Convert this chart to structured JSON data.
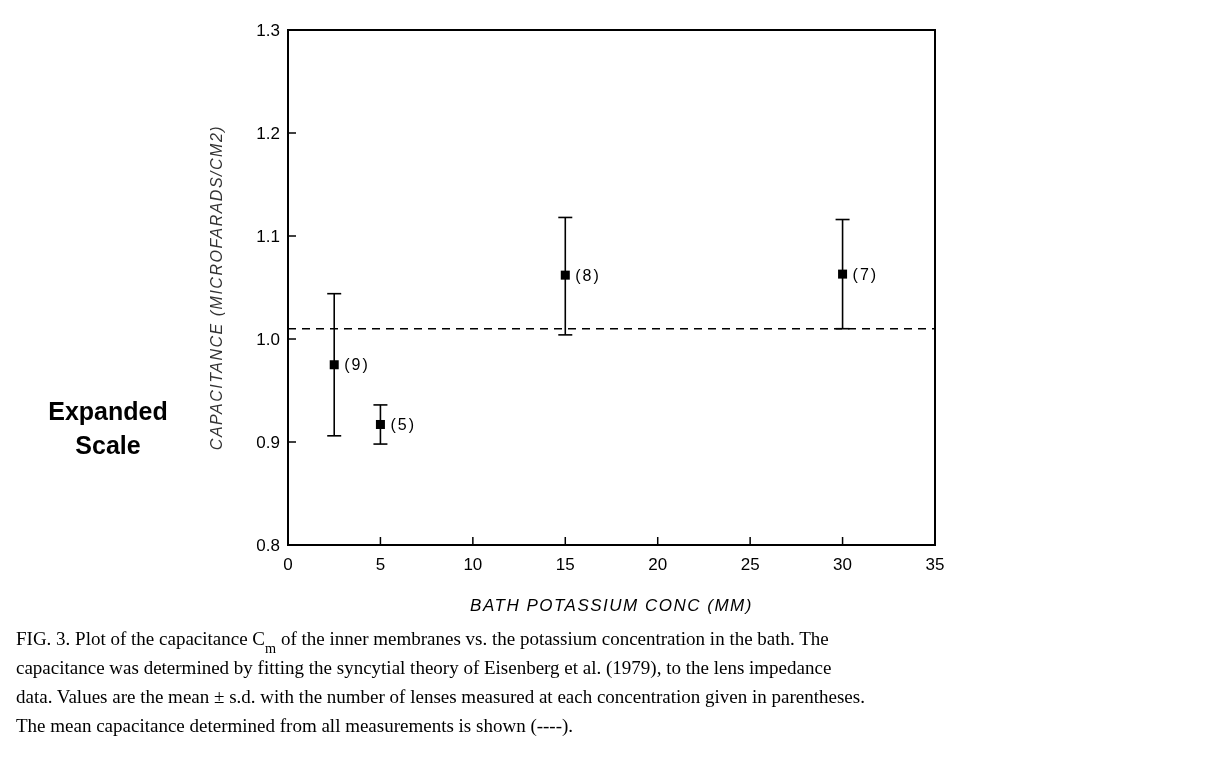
{
  "chart_data": {
    "type": "scatter",
    "xlabel": "BATH POTASSIUM CONC (MM)",
    "ylabel": "CAPACITANCE (MICROFARADS/CM2)",
    "x": [
      2.5,
      5,
      15,
      30
    ],
    "values": [
      0.975,
      0.917,
      1.062,
      1.063
    ],
    "errors": [
      [
        0.906,
        1.044
      ],
      [
        0.898,
        0.936
      ],
      [
        1.004,
        1.118
      ],
      [
        1.01,
        1.116
      ]
    ],
    "color": "#000000",
    "marker": "square",
    "grid": false,
    "xlim": [
      0,
      35
    ],
    "xticks": [
      0,
      5,
      10,
      15,
      20,
      25,
      30,
      35
    ],
    "ylim": [
      0.8,
      1.3
    ],
    "yticks": [
      0.8,
      0.9,
      {
        "value": 1.0,
        "label": "1.0"
      },
      1.1,
      1.2,
      1.3
    ],
    "ref_lines": [
      {
        "axis": "y",
        "value": 1.01,
        "line_style": "dashed"
      }
    ],
    "annotations": [
      {
        "text": "(9)",
        "x": 2.5,
        "y": 0.975
      },
      {
        "text": "(5)",
        "x": 5,
        "y": 0.917
      },
      {
        "text": "(8)",
        "x": 15,
        "y": 1.062
      },
      {
        "text": "(7)",
        "x": 30,
        "y": 1.063
      },
      "Expanded Scale",
      "FIG. 3. Plot of the capacitance C$_{m}$ of the inner membranes vs. the potassium concentration in the bath. The capacitance was determined by fitting the syncytial theory of Eisenberg et al. (1979), to the lens impedance data. Values are the mean ± s.d. with the number of lenses measured at each concentration given in parentheses. The mean capacitance determined from all measurements is shown (----)."
    ]
  }
}
